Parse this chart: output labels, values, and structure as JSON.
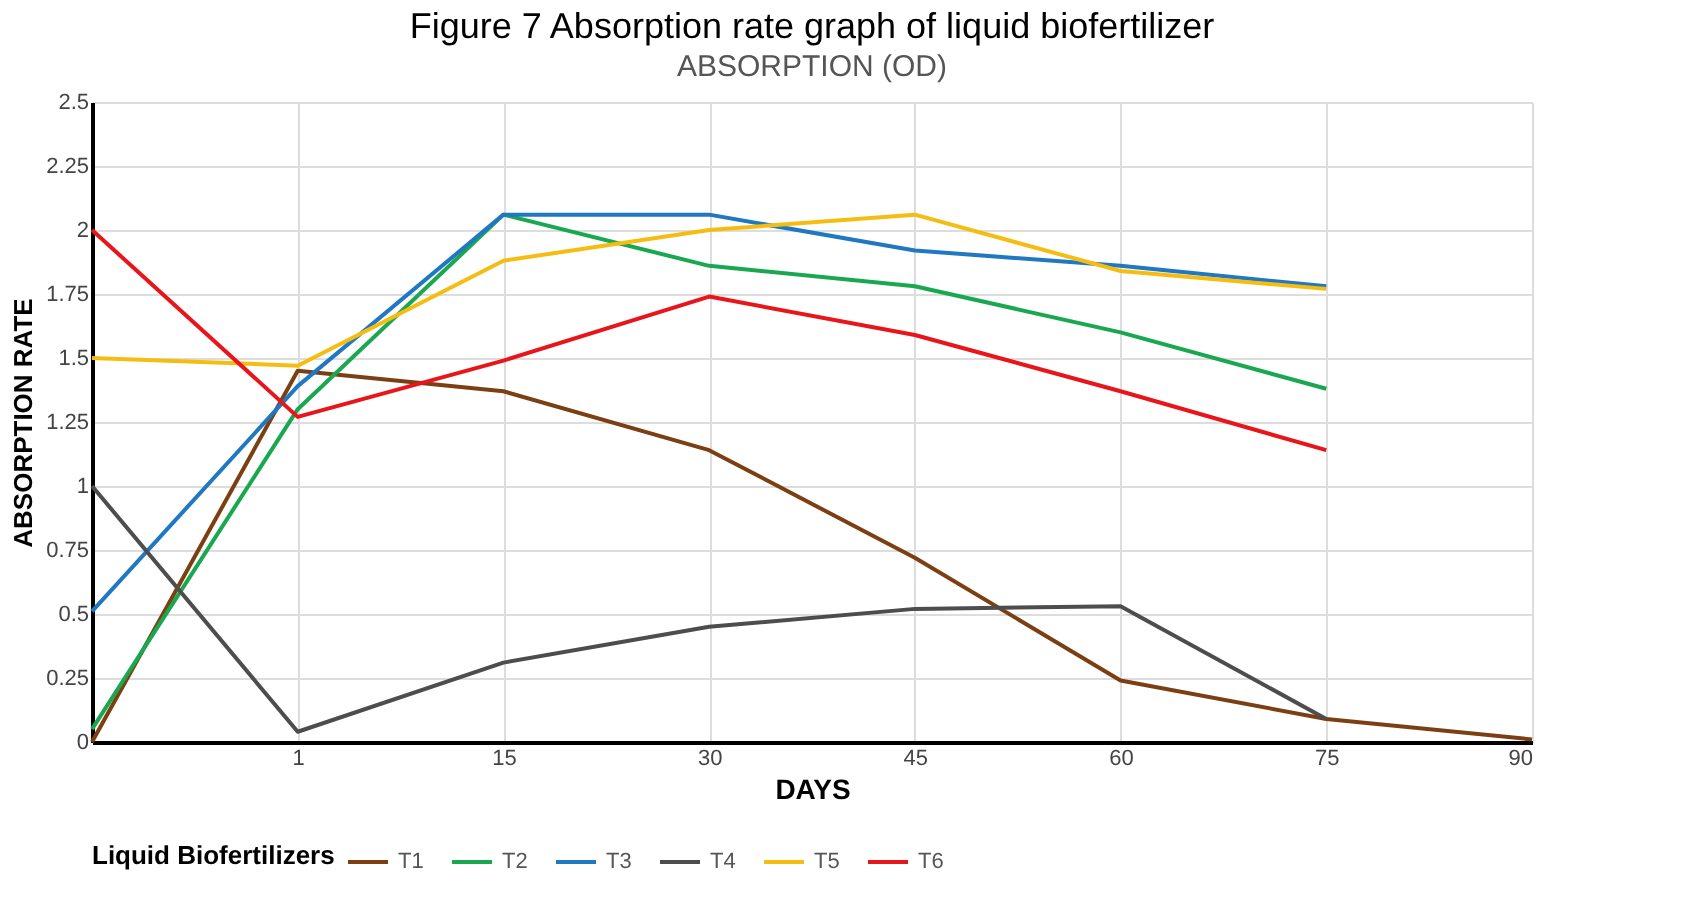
{
  "chart_data": {
    "type": "line",
    "title": "Figure 7 Absorption rate graph of liquid biofertilizer",
    "subtitle": "ABSORPTION (OD)",
    "xlabel": "DAYS",
    "ylabel": "ABSORPTION RATE",
    "legend_title": "Liquid Biofertilizers",
    "categories": [
      null,
      "1",
      "15",
      "30",
      "45",
      "60",
      "75",
      "90"
    ],
    "series": [
      {
        "name": "T1",
        "color": "#7b3f12",
        "values": [
          0,
          1.45,
          1.37,
          1.14,
          0.72,
          0.24,
          0.09,
          0.01
        ]
      },
      {
        "name": "T2",
        "color": "#19a84f",
        "values": [
          0.05,
          1.3,
          2.06,
          1.86,
          1.78,
          1.6,
          1.38,
          null
        ]
      },
      {
        "name": "T3",
        "color": "#1f78c1",
        "values": [
          0.51,
          1.39,
          2.06,
          2.06,
          1.92,
          1.86,
          1.78,
          null
        ]
      },
      {
        "name": "T4",
        "color": "#4d4d4d",
        "values": [
          1.0,
          0.04,
          0.31,
          0.45,
          0.52,
          0.53,
          0.09,
          null
        ]
      },
      {
        "name": "T5",
        "color": "#f5bd12",
        "values": [
          1.5,
          1.47,
          1.88,
          2.0,
          2.06,
          1.84,
          1.77,
          null
        ]
      },
      {
        "name": "T6",
        "color": "#e8151b",
        "values": [
          2.0,
          1.27,
          1.49,
          1.74,
          1.59,
          1.37,
          1.14,
          null
        ]
      }
    ],
    "ylim": [
      0,
      2.5
    ],
    "yticks": [
      0,
      0.25,
      0.5,
      0.75,
      1,
      1.25,
      1.5,
      1.75,
      2,
      2.25,
      2.5
    ],
    "grid": true,
    "legend": "bottom",
    "marker": "none",
    "line_style": "solid"
  }
}
